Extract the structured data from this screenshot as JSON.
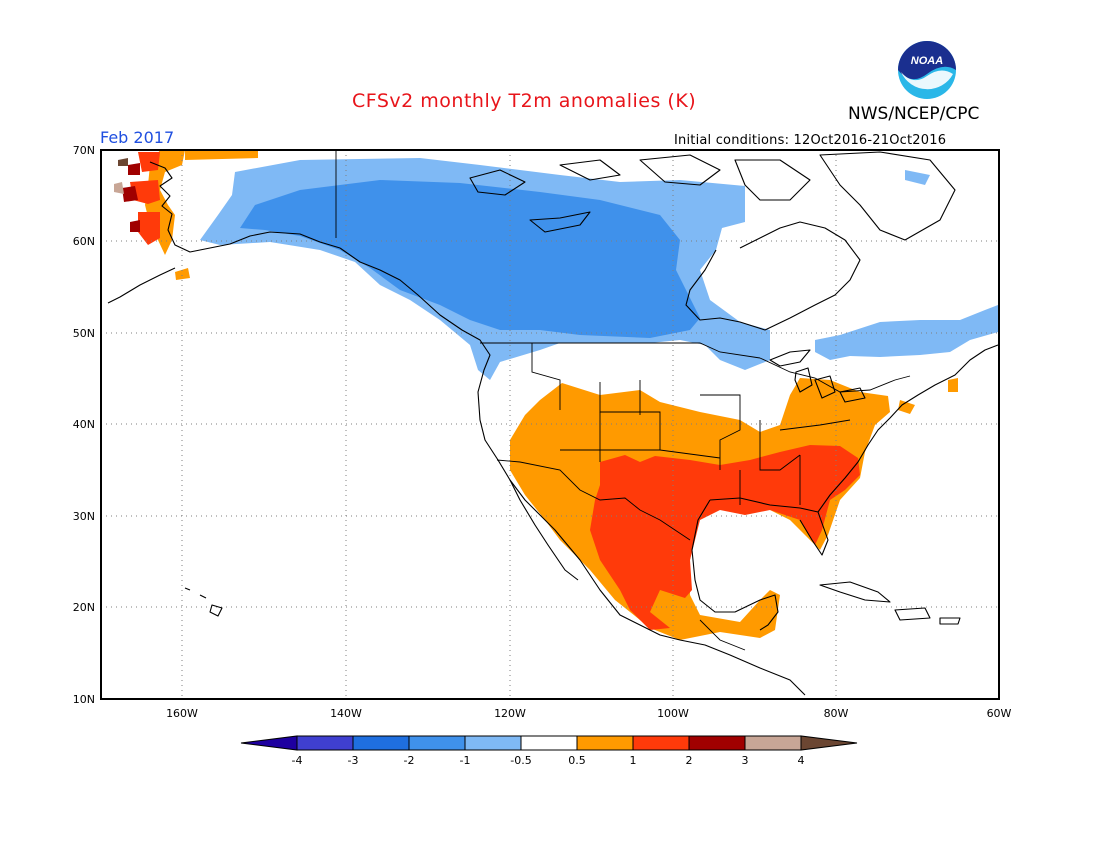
{
  "header": {
    "title": "CFSv2 monthly T2m anomalies (K)",
    "agency": "NWS/NCEP/CPC",
    "period": "Feb 2017",
    "initial_conditions": "Initial conditions: 12Oct2016-21Oct2016",
    "logo_text": "NOAA"
  },
  "axes": {
    "lat_labels": [
      "70N",
      "60N",
      "50N",
      "40N",
      "30N",
      "20N",
      "10N"
    ],
    "lon_labels": [
      "160W",
      "140W",
      "120W",
      "100W",
      "80W",
      "60W"
    ]
  },
  "colorbar": {
    "tick_labels": [
      "-4",
      "-3",
      "-2",
      "-1",
      "-0.5",
      "0.5",
      "1",
      "2",
      "3",
      "4"
    ],
    "colors": [
      "#1e00a0",
      "#3f3fd0",
      "#1f6fdf",
      "#3f91eb",
      "#7fb9f5",
      "#ffffff",
      "#ff9a00",
      "#ff3a0a",
      "#a00000",
      "#c8a696",
      "#6b4632"
    ]
  },
  "colors": {
    "ocean": "#ffffff",
    "land_neutral": "#ffffff",
    "coast": "#000000",
    "grid": "#7f7f7f"
  }
}
